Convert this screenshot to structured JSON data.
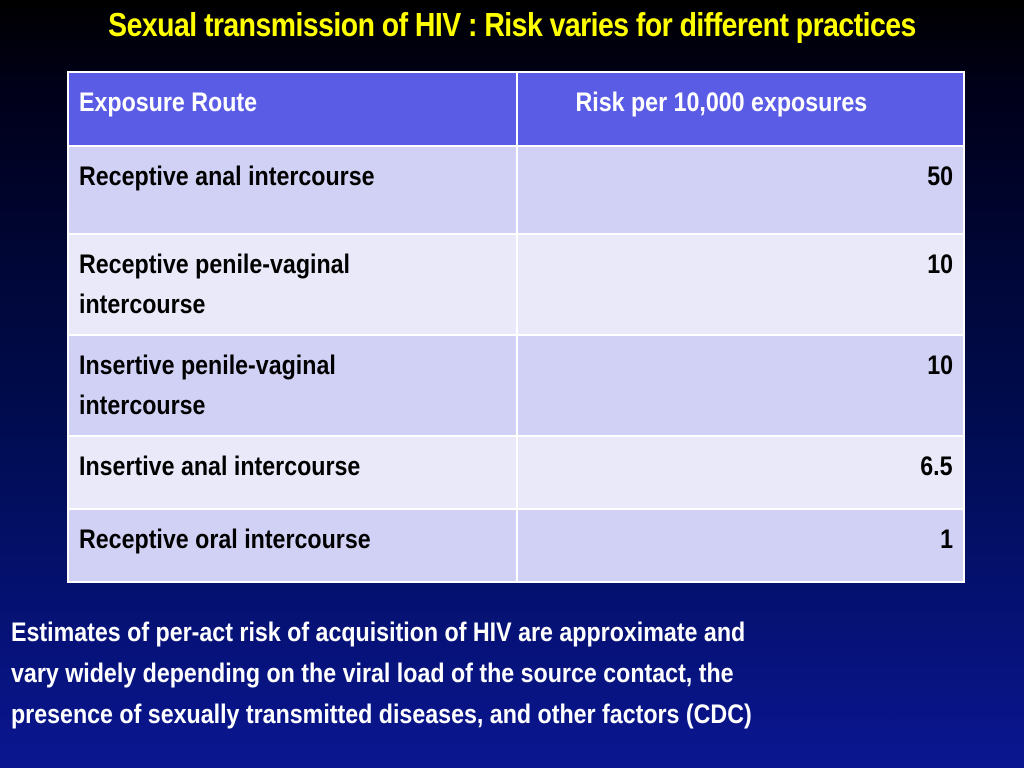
{
  "title": "Sexual transmission of HIV : Risk varies for different practices",
  "table": {
    "headers": {
      "route": "Exposure Route",
      "risk": "Risk per 10,000 exposures"
    },
    "rows": [
      {
        "route_lines": [
          "Receptive anal intercourse"
        ],
        "risk": "50"
      },
      {
        "route_lines": [
          "Receptive penile-vaginal",
          "intercourse"
        ],
        "risk": "10"
      },
      {
        "route_lines": [
          "Insertive penile-vaginal",
          "intercourse"
        ],
        "risk": "10"
      },
      {
        "route_lines": [
          "Insertive anal intercourse"
        ],
        "risk": "6.5"
      },
      {
        "route_lines": [
          "Receptive oral intercourse"
        ],
        "risk": "1"
      }
    ]
  },
  "footnote": {
    "lines": [
      "Estimates of per-act risk of acquisition of HIV are approximate and",
      "vary widely depending on the viral load of the source contact, the",
      "presence of sexually transmitted diseases, and other factors (CDC)"
    ]
  },
  "colors": {
    "title": "#ffff00",
    "header_bg": "#5b5ce6",
    "row_odd_bg": "#d1d1f5",
    "row_even_bg": "#e9e9f9",
    "footnote_text": "#ffffff"
  }
}
